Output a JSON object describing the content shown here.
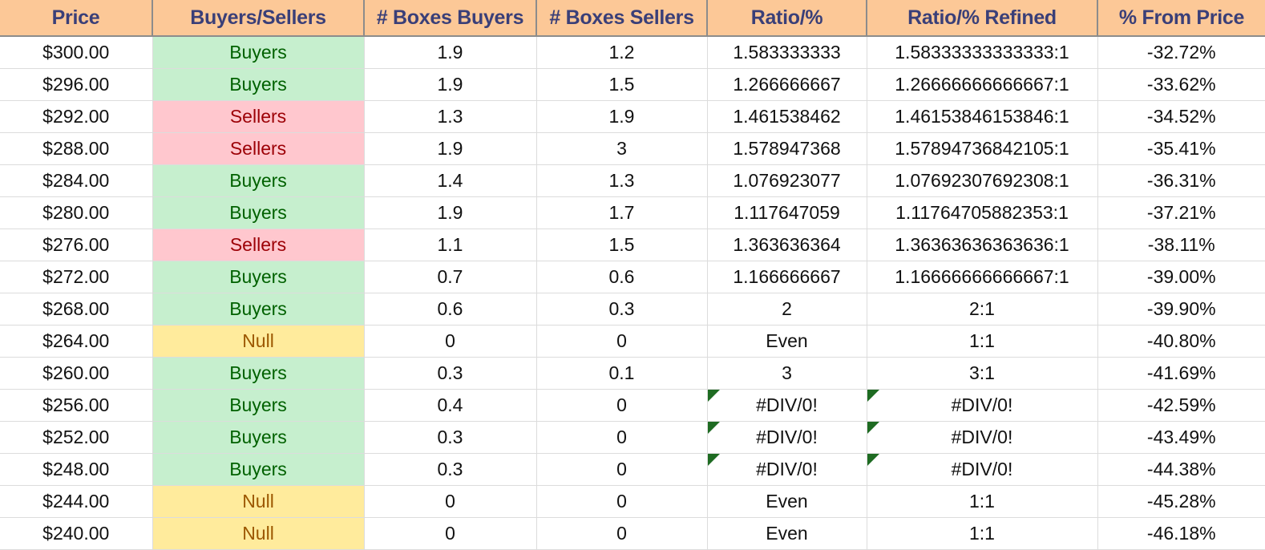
{
  "columns": [
    "Price",
    "Buyers/Sellers",
    "# Boxes Buyers",
    "# Boxes Sellers",
    "Ratio/%",
    "Ratio/% Refined",
    "% From Price"
  ],
  "colors": {
    "header_bg": "#fcc897",
    "header_text": "#3a3f78",
    "buyers_bg": "#c6efce",
    "buyers_text": "#006100",
    "sellers_bg": "#ffc7ce",
    "sellers_text": "#9c0006",
    "null_bg": "#ffeb9c",
    "null_text": "#9c5700",
    "error_marker": "#1e6b22"
  },
  "rows": [
    {
      "price": "$300.00",
      "side": "Buyers",
      "boxes_buyers": "1.9",
      "boxes_sellers": "1.2",
      "ratio": "1.583333333",
      "ratio_refined": "1.58333333333333:1",
      "from_price": "-32.72%",
      "error": false
    },
    {
      "price": "$296.00",
      "side": "Buyers",
      "boxes_buyers": "1.9",
      "boxes_sellers": "1.5",
      "ratio": "1.266666667",
      "ratio_refined": "1.26666666666667:1",
      "from_price": "-33.62%",
      "error": false
    },
    {
      "price": "$292.00",
      "side": "Sellers",
      "boxes_buyers": "1.3",
      "boxes_sellers": "1.9",
      "ratio": "1.461538462",
      "ratio_refined": "1.46153846153846:1",
      "from_price": "-34.52%",
      "error": false
    },
    {
      "price": "$288.00",
      "side": "Sellers",
      "boxes_buyers": "1.9",
      "boxes_sellers": "3",
      "ratio": "1.578947368",
      "ratio_refined": "1.57894736842105:1",
      "from_price": "-35.41%",
      "error": false
    },
    {
      "price": "$284.00",
      "side": "Buyers",
      "boxes_buyers": "1.4",
      "boxes_sellers": "1.3",
      "ratio": "1.076923077",
      "ratio_refined": "1.07692307692308:1",
      "from_price": "-36.31%",
      "error": false
    },
    {
      "price": "$280.00",
      "side": "Buyers",
      "boxes_buyers": "1.9",
      "boxes_sellers": "1.7",
      "ratio": "1.117647059",
      "ratio_refined": "1.11764705882353:1",
      "from_price": "-37.21%",
      "error": false
    },
    {
      "price": "$276.00",
      "side": "Sellers",
      "boxes_buyers": "1.1",
      "boxes_sellers": "1.5",
      "ratio": "1.363636364",
      "ratio_refined": "1.36363636363636:1",
      "from_price": "-38.11%",
      "error": false
    },
    {
      "price": "$272.00",
      "side": "Buyers",
      "boxes_buyers": "0.7",
      "boxes_sellers": "0.6",
      "ratio": "1.166666667",
      "ratio_refined": "1.16666666666667:1",
      "from_price": "-39.00%",
      "error": false
    },
    {
      "price": "$268.00",
      "side": "Buyers",
      "boxes_buyers": "0.6",
      "boxes_sellers": "0.3",
      "ratio": "2",
      "ratio_refined": "2:1",
      "from_price": "-39.90%",
      "error": false
    },
    {
      "price": "$264.00",
      "side": "Null",
      "boxes_buyers": "0",
      "boxes_sellers": "0",
      "ratio": "Even",
      "ratio_refined": "1:1",
      "from_price": "-40.80%",
      "error": false
    },
    {
      "price": "$260.00",
      "side": "Buyers",
      "boxes_buyers": "0.3",
      "boxes_sellers": "0.1",
      "ratio": "3",
      "ratio_refined": "3:1",
      "from_price": "-41.69%",
      "error": false
    },
    {
      "price": "$256.00",
      "side": "Buyers",
      "boxes_buyers": "0.4",
      "boxes_sellers": "0",
      "ratio": "#DIV/0!",
      "ratio_refined": "#DIV/0!",
      "from_price": "-42.59%",
      "error": true
    },
    {
      "price": "$252.00",
      "side": "Buyers",
      "boxes_buyers": "0.3",
      "boxes_sellers": "0",
      "ratio": "#DIV/0!",
      "ratio_refined": "#DIV/0!",
      "from_price": "-43.49%",
      "error": true
    },
    {
      "price": "$248.00",
      "side": "Buyers",
      "boxes_buyers": "0.3",
      "boxes_sellers": "0",
      "ratio": "#DIV/0!",
      "ratio_refined": "#DIV/0!",
      "from_price": "-44.38%",
      "error": true
    },
    {
      "price": "$244.00",
      "side": "Null",
      "boxes_buyers": "0",
      "boxes_sellers": "0",
      "ratio": "Even",
      "ratio_refined": "1:1",
      "from_price": "-45.28%",
      "error": false
    },
    {
      "price": "$240.00",
      "side": "Null",
      "boxes_buyers": "0",
      "boxes_sellers": "0",
      "ratio": "Even",
      "ratio_refined": "1:1",
      "from_price": "-46.18%",
      "error": false
    }
  ]
}
